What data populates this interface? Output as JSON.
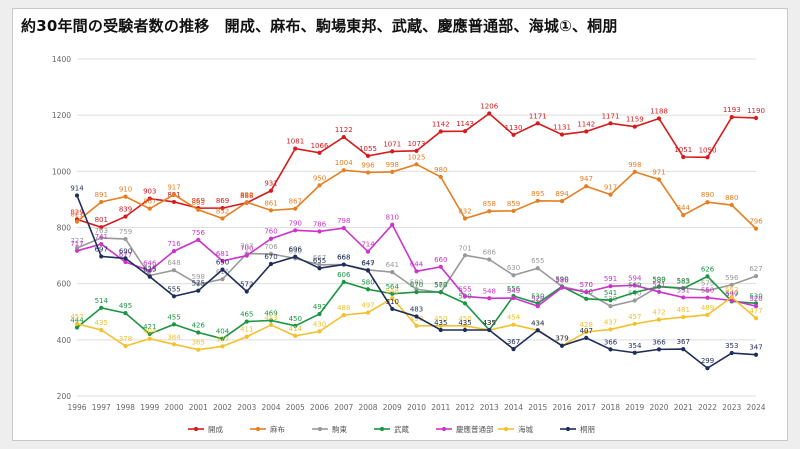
{
  "page": {
    "title": "約30年間の受験者数の推移　開成、麻布、駒場東邦、武蔵、慶應普通部、海城①、桐朋"
  },
  "chart_data": {
    "type": "line",
    "title": "約30年間の受験者数の推移　開成、麻布、駒場東邦、武蔵、慶應普通部、海城①、桐朋",
    "xlabel": "",
    "ylabel": "",
    "ylim": [
      200,
      1400
    ],
    "yticks": [
      200,
      400,
      600,
      800,
      1000,
      1200,
      1400
    ],
    "grid": true,
    "legend_position": "bottom",
    "x": [
      "1996",
      "1997",
      "1998",
      "1999",
      "2000",
      "2001",
      "2002",
      "2003",
      "2004",
      "2005",
      "2006",
      "2007",
      "2008",
      "2009",
      "2010",
      "2011",
      "2012",
      "2013",
      "2014",
      "2015",
      "2016",
      "2017",
      "2018",
      "2019",
      "2020",
      "2021",
      "2022",
      "2023",
      "2024"
    ],
    "series": [
      {
        "name": "開成",
        "color": "#d7191c",
        "values": [
          829,
          801,
          839,
          903,
          891,
          869,
          869,
          888,
          931,
          1081,
          1066,
          1122,
          1055,
          1071,
          1073,
          1142,
          1143,
          1206,
          1130,
          1171,
          1131,
          1142,
          1171,
          1159,
          1188,
          1051,
          1050,
          1193,
          1190
        ]
      },
      {
        "name": "麻布",
        "color": "#e67e22",
        "values": [
          821,
          891,
          910,
          867,
          917,
          863,
          832,
          890,
          861,
          867,
          950,
          1004,
          996,
          998,
          1025,
          980,
          832,
          858,
          859,
          895,
          894,
          947,
          917,
          998,
          971,
          844,
          890,
          880,
          796
        ]
      },
      {
        "name": "駒東",
        "color": "#999999",
        "values": [
          727,
          763,
          759,
          629,
          648,
          598,
          616,
          707,
          706,
          690,
          667,
          668,
          649,
          641,
          580,
          569,
          701,
          686,
          630,
          655,
          590,
          570,
          520,
          540,
          590,
          585,
          575,
          596,
          627
        ]
      },
      {
        "name": "武蔵",
        "color": "#1a9641",
        "values": [
          444,
          514,
          495,
          421,
          455,
          426,
          404,
          465,
          469,
          450,
          492,
          606,
          580,
          564,
          570,
          570,
          530,
          435,
          556,
          530,
          590,
          546,
          541,
          569,
          589,
          583,
          626,
          537,
          530
        ]
      },
      {
        "name": "慶應普通部",
        "color": "#cc33cc",
        "values": [
          717,
          741,
          677,
          646,
          716,
          756,
          681,
          700,
          760,
          790,
          786,
          798,
          714,
          810,
          644,
          660,
          555,
          548,
          549,
          520,
          586,
          570,
          591,
          594,
          571,
          551,
          550,
          540,
          520
        ]
      },
      {
        "name": "海城",
        "color": "#f2c12e",
        "values": [
          457,
          435,
          378,
          404,
          384,
          365,
          377,
          411,
          453,
          414,
          430,
          488,
          497,
          548,
          450,
          450,
          450,
          435,
          454,
          434,
          379,
          428,
          437,
          457,
          472,
          481,
          489,
          552,
          477
        ]
      },
      {
        "name": "桐朋",
        "color": "#1f2d5a",
        "values": [
          914,
          697,
          690,
          625,
          555,
          575,
          650,
          572,
          670,
          696,
          655,
          668,
          647,
          510,
          483,
          435,
          435,
          435,
          367,
          434,
          379,
          407,
          366,
          354,
          366,
          367,
          299,
          353,
          347
        ]
      }
    ]
  },
  "legend": {
    "items": [
      "開成",
      "麻布",
      "駒東",
      "武蔵",
      "慶應普通部",
      "海城",
      "桐朋"
    ]
  }
}
